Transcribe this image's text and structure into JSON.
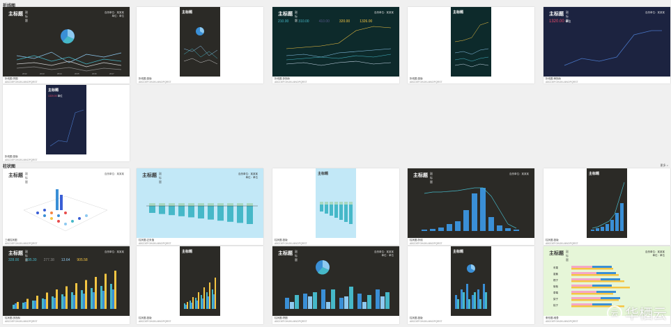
{
  "sections": [
    {
      "label": "折线图"
    },
    {
      "label": "柱状图",
      "more": "更多 >"
    }
  ],
  "cards": [
    {
      "id": "line-1",
      "title": "主标题",
      "sub": "副标题",
      "meta1": "自然单位：某某某",
      "meta2": "单位：单位",
      "caption": "折线图-饼图",
      "caption2": "ABCDEFGHIJKLMNOPQRST",
      "bg": "#2b2a26",
      "years": [
        "2012",
        "2013",
        "2014",
        "2015",
        "2016",
        "2017"
      ]
    },
    {
      "id": "line-2",
      "title": "主标题",
      "sub": "副标题",
      "meta1": "自然单位",
      "meta2": "单位",
      "caption": "折线图-竖版",
      "caption2": "ABCDEFGHIJKLMNOPQRST",
      "bg": "#2b2a26"
    },
    {
      "id": "line-3",
      "title": "主标题",
      "sub": "副标题",
      "meta1": "自然单位：某某某",
      "meta2": "",
      "caption": "折线图-多指标",
      "caption2": "ABCDEFGHIJKLMNOPQRST",
      "bg": "#0d2a2b",
      "kpis": [
        "210.00",
        "310.00",
        "410.00",
        "320.00",
        "1326.00"
      ]
    },
    {
      "id": "line-4",
      "title": "主标题",
      "sub": "副标题",
      "meta1": "自然单位",
      "meta2": "",
      "caption": "折线图-竖版",
      "caption2": "ABCDEFGHIJKLMNOPQRST",
      "bg": "#0d2a2b"
    },
    {
      "id": "line-5",
      "title": "主标题",
      "sub": "副标题",
      "meta1": "自然单位：某某某",
      "meta2": "",
      "caption": "折线图-单指标",
      "caption2": "ABCDEFGHIJKLMNOPQRST",
      "bg": "#1c2340",
      "kpi": "1320.00",
      "kpi_unit": "单位"
    },
    {
      "id": "line-6",
      "title": "主标题",
      "sub": "副标题",
      "meta1": "自然单位",
      "meta2": "",
      "caption": "折线图-竖版",
      "caption2": "ABCDEFGHIJKLMNOPQRST",
      "bg": "#1c2340",
      "kpi": "1320.00",
      "kpi_unit": "单位"
    },
    {
      "id": "bar-1",
      "title": "主标题",
      "sub": "副标题",
      "meta1": "自然单位：某某某",
      "meta2": "",
      "caption": "三维柱状图",
      "caption2": "ABCDEFGHIJKLMNOPQRST",
      "bg": "#ffffff"
    },
    {
      "id": "bar-2",
      "title": "主标题",
      "sub": "副标题",
      "meta1": "自然单位：某某某",
      "meta2": "单位：单位",
      "caption": "柱状图-正负值",
      "caption2": "ABCDEFGHIJKLMNOPQRST",
      "bg": "#c2e8f7",
      "years": [
        "2007",
        "2008",
        "2009",
        "2010",
        "2011",
        "2012",
        "2013",
        "2014",
        "2015",
        "2016",
        "2017"
      ]
    },
    {
      "id": "bar-3",
      "title": "主标题",
      "sub": "副标题",
      "meta1": "自然单位",
      "meta2": "",
      "caption": "柱状图-竖版",
      "caption2": "ABCDEFGHIJKLMNOPQRST",
      "bg": "#c2e8f7"
    },
    {
      "id": "bar-4",
      "title": "主标题",
      "sub": "副标题",
      "meta1": "自然单位：某某某",
      "meta2": "",
      "caption": "柱状图-折线",
      "caption2": "ABCDEFGHIJKLMNOPQRST",
      "bg": "#2b2a26"
    },
    {
      "id": "bar-5",
      "title": "主标题",
      "sub": "副标题",
      "meta1": "自然单位",
      "meta2": "",
      "caption": "柱状图-竖版",
      "caption2": "ABCDEFGHIJKLMNOPQRST",
      "bg": "#2b2a26"
    },
    {
      "id": "bar-6",
      "title": "主标题",
      "sub": "副标题",
      "meta1": "自然单位：某某某",
      "meta2": "",
      "caption": "柱状图-多指标",
      "caption2": "ABCDEFGHIJKLMNOPQRST",
      "bg": "#2b2a26",
      "kpis": [
        "328.00",
        "195.30",
        "277.38",
        "13.64",
        "905.58"
      ],
      "years": [
        "2007",
        "2008",
        "2009",
        "2010",
        "2011",
        "2012",
        "2013",
        "2014",
        "2015",
        "2016",
        "2017"
      ]
    },
    {
      "id": "bar-7",
      "title": "主标题",
      "sub": "副标题",
      "meta1": "自然单位",
      "meta2": "",
      "caption": "柱状图-竖版",
      "caption2": "ABCDEFGHIJKLMNOPQRST",
      "bg": "#2b2a26"
    },
    {
      "id": "bar-8",
      "title": "主标题",
      "sub": "副标题",
      "meta1": "自然单位：某某某",
      "meta2": "单位：单位",
      "caption": "柱状图-饼图",
      "caption2": "ABCDEFGHIJKLMNOPQRST",
      "bg": "#2b2a26",
      "years": [
        "2012",
        "2013",
        "2014",
        "2015",
        "2016",
        "2017"
      ]
    },
    {
      "id": "bar-9",
      "title": "主标题",
      "sub": "副标题",
      "meta1": "自然单位",
      "meta2": "",
      "caption": "柱状图-竖版",
      "caption2": "ABCDEFGHIJKLMNOPQRST",
      "bg": "#2b2a26"
    },
    {
      "id": "bar-10",
      "title": "主标题",
      "sub": "副标题",
      "meta1": "自然单位：某某某",
      "meta2": "单位：单位",
      "caption": "条形图-堆叠",
      "caption2": "ABCDEFGHIJKLMNOPQRST",
      "bg": "#e6f6d8",
      "rows": [
        "苹果",
        "香蕉",
        "橘子",
        "葡萄",
        "草莓",
        "梨子",
        "桃子"
      ]
    }
  ],
  "watermark": {
    "text": "华栖云",
    "logo": "云"
  },
  "colors": {
    "teal": "#46b8c8",
    "blue": "#3a8fd6",
    "yellow": "#f5c542",
    "lightblue": "#8ec9f0",
    "white": "#ffffff"
  }
}
